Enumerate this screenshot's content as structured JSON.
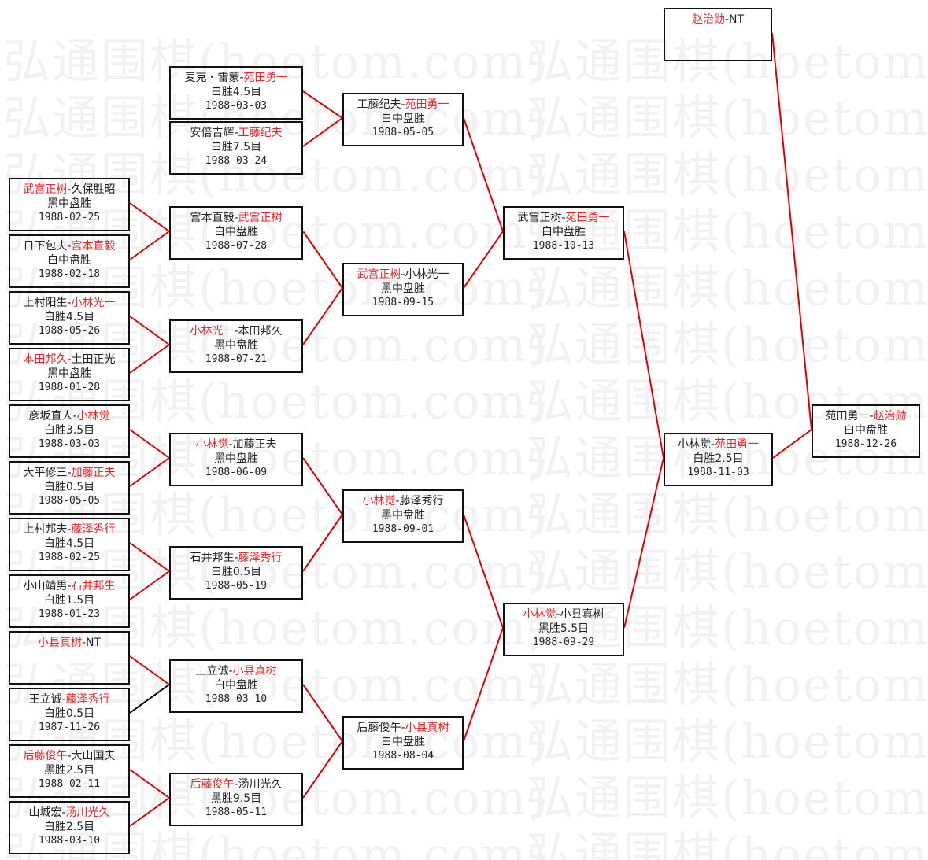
{
  "watermark": "弘通围棋(hoetom.com)",
  "colors": {
    "winner": "#e8262a",
    "link": "#e00000",
    "alt_link": "#000000",
    "border": "#111111"
  },
  "matches": [
    {
      "id": "r1a",
      "players": [
        {
          "name": "武宫正树",
          "win": true
        },
        {
          "name": "久保胜昭",
          "win": false
        }
      ],
      "result": "黑中盘胜",
      "date": "1988-02-25",
      "link": "red"
    },
    {
      "id": "r1b",
      "players": [
        {
          "name": "日下包夫",
          "win": false
        },
        {
          "name": "宫本直毅",
          "win": true
        }
      ],
      "result": "白中盘胜",
      "date": "1988-02-18",
      "link": "red"
    },
    {
      "id": "r1c",
      "players": [
        {
          "name": "上村阳生",
          "win": false
        },
        {
          "name": "小林光一",
          "win": true
        }
      ],
      "result": "白胜4.5目",
      "date": "1988-05-26",
      "link": "red"
    },
    {
      "id": "r1d",
      "players": [
        {
          "name": "本田邦久",
          "win": true
        },
        {
          "name": "土田正光",
          "win": false
        }
      ],
      "result": "黑中盘胜",
      "date": "1988-01-28",
      "link": "red"
    },
    {
      "id": "r1e",
      "players": [
        {
          "name": "彦坂直人",
          "win": false
        },
        {
          "name": "小林觉",
          "win": true
        }
      ],
      "result": "白胜3.5目",
      "date": "1988-03-03",
      "link": "red"
    },
    {
      "id": "r1f",
      "players": [
        {
          "name": "大平修三",
          "win": false
        },
        {
          "name": "加藤正夫",
          "win": true
        }
      ],
      "result": "白胜0.5目",
      "date": "1988-05-05",
      "link": "red"
    },
    {
      "id": "r1g",
      "players": [
        {
          "name": "上村邦夫",
          "win": false
        },
        {
          "name": "藤泽秀行",
          "win": true
        }
      ],
      "result": "白胜4.5目",
      "date": "1988-02-25",
      "link": "red"
    },
    {
      "id": "r1h",
      "players": [
        {
          "name": "小山靖男",
          "win": false
        },
        {
          "name": "石井邦生",
          "win": true
        }
      ],
      "result": "白胜1.5目",
      "date": "1988-01-23",
      "link": "red"
    },
    {
      "id": "r1i",
      "players": [
        {
          "name": "小县真树",
          "win": true
        },
        {
          "name": "NT",
          "win": false
        }
      ],
      "result": "",
      "date": "",
      "link": "red"
    },
    {
      "id": "r1j",
      "players": [
        {
          "name": "王立诚",
          "win": false
        },
        {
          "name": "藤泽秀行",
          "win": true
        }
      ],
      "result": "白胜0.5目",
      "date": "1987-11-26",
      "link": "black"
    },
    {
      "id": "r1k",
      "players": [
        {
          "name": "后藤俊午",
          "win": true
        },
        {
          "name": "大山国夫",
          "win": false
        }
      ],
      "result": "黑胜2.5目",
      "date": "1988-02-11",
      "link": "red"
    },
    {
      "id": "r1l",
      "players": [
        {
          "name": "山城宏",
          "win": false
        },
        {
          "name": "汤川光久",
          "win": true
        }
      ],
      "result": "白胜2.5目",
      "date": "1988-03-10",
      "link": "red"
    },
    {
      "id": "r2a",
      "players": [
        {
          "name": "麦克・雷蒙",
          "win": false
        },
        {
          "name": "苑田勇一",
          "win": true
        }
      ],
      "result": "白胜4.5目",
      "date": "1988-03-03",
      "link": "red"
    },
    {
      "id": "r2b",
      "players": [
        {
          "name": "安倍吉辉",
          "win": false
        },
        {
          "name": "工藤纪夫",
          "win": true
        }
      ],
      "result": "白胜7.5目",
      "date": "1988-03-24",
      "link": "red"
    },
    {
      "id": "r2c",
      "players": [
        {
          "name": "宫本直毅",
          "win": false
        },
        {
          "name": "武宫正树",
          "win": true
        }
      ],
      "result": "白中盘胜",
      "date": "1988-07-28",
      "link": "red"
    },
    {
      "id": "r2d",
      "players": [
        {
          "name": "小林光一",
          "win": true
        },
        {
          "name": "本田邦久",
          "win": false
        }
      ],
      "result": "黑中盘胜",
      "date": "1988-07-21",
      "link": "red"
    },
    {
      "id": "r2e",
      "players": [
        {
          "name": "小林觉",
          "win": true
        },
        {
          "name": "加藤正夫",
          "win": false
        }
      ],
      "result": "黑中盘胜",
      "date": "1988-06-09",
      "link": "red"
    },
    {
      "id": "r2f",
      "players": [
        {
          "name": "石井邦生",
          "win": false
        },
        {
          "name": "藤泽秀行",
          "win": true
        }
      ],
      "result": "白胜0.5目",
      "date": "1988-05-19",
      "link": "red"
    },
    {
      "id": "r2g",
      "players": [
        {
          "name": "王立诚",
          "win": false
        },
        {
          "name": "小县真树",
          "win": true
        }
      ],
      "result": "白中盘胜",
      "date": "1988-03-10",
      "link": "red"
    },
    {
      "id": "r2h",
      "players": [
        {
          "name": "后藤俊午",
          "win": true
        },
        {
          "name": "汤川光久",
          "win": false
        }
      ],
      "result": "黑胜9.5目",
      "date": "1988-05-11",
      "link": "red"
    },
    {
      "id": "r3a",
      "players": [
        {
          "name": "工藤纪夫",
          "win": false
        },
        {
          "name": "苑田勇一",
          "win": true
        }
      ],
      "result": "白中盘胜",
      "date": "1988-05-05",
      "link": "red"
    },
    {
      "id": "r3b",
      "players": [
        {
          "name": "武宫正树",
          "win": true
        },
        {
          "name": "小林光一",
          "win": false
        }
      ],
      "result": "黑中盘胜",
      "date": "1988-09-15",
      "link": "red"
    },
    {
      "id": "r3c",
      "players": [
        {
          "name": "小林觉",
          "win": true
        },
        {
          "name": "藤泽秀行",
          "win": false
        }
      ],
      "result": "黑中盘胜",
      "date": "1988-09-01",
      "link": "red"
    },
    {
      "id": "r3d",
      "players": [
        {
          "name": "后藤俊午",
          "win": false
        },
        {
          "name": "小县真树",
          "win": true
        }
      ],
      "result": "白中盘胜",
      "date": "1988-08-04",
      "link": "red"
    },
    {
      "id": "r4a",
      "players": [
        {
          "name": "武宫正树",
          "win": false
        },
        {
          "name": "苑田勇一",
          "win": true
        }
      ],
      "result": "白中盘胜",
      "date": "1988-10-13",
      "link": "red"
    },
    {
      "id": "r4b",
      "players": [
        {
          "name": "小林觉",
          "win": true
        },
        {
          "name": "小县真树",
          "win": false
        }
      ],
      "result": "黑胜5.5目",
      "date": "1988-09-29",
      "link": "red"
    },
    {
      "id": "r5",
      "players": [
        {
          "name": "小林觉",
          "win": false
        },
        {
          "name": "苑田勇一",
          "win": true
        }
      ],
      "result": "白胜2.5目",
      "date": "1988-11-03",
      "link": "red"
    },
    {
      "id": "seed",
      "players": [
        {
          "name": "赵治勋",
          "win": true
        },
        {
          "name": "NT",
          "win": false
        }
      ],
      "result": "",
      "date": "",
      "link": "red"
    },
    {
      "id": "final",
      "players": [
        {
          "name": "苑田勇一",
          "win": false
        },
        {
          "name": "赵治勋",
          "win": true
        }
      ],
      "result": "白中盘胜",
      "date": "1988-12-26",
      "link": ""
    }
  ]
}
